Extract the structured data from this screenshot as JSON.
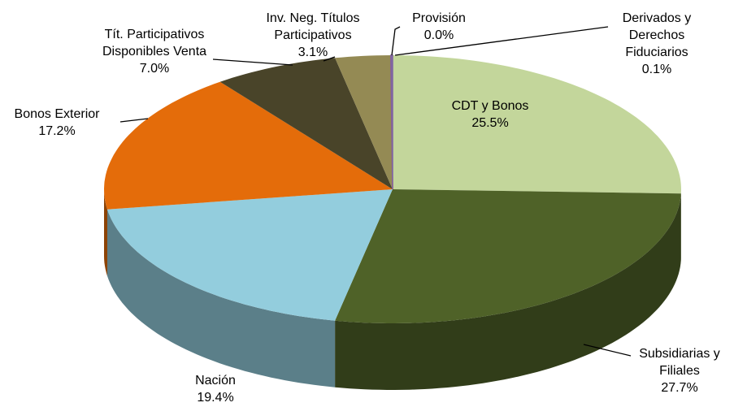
{
  "chart_data": {
    "type": "pie3d",
    "categories": [
      "CDT y Bonos",
      "Subsidiarias y Filiales",
      "Nación",
      "Bonos Exterior",
      "Tít. Participativos Disponibles Venta",
      "Inv. Neg. Títulos Participativos",
      "Provisión",
      "Derivados y Derechos Fiduciarios"
    ],
    "values": [
      25.5,
      27.7,
      19.4,
      17.2,
      7.0,
      3.1,
      0.0,
      0.1
    ],
    "value_labels": [
      "25.5%",
      "27.7%",
      "19.4%",
      "17.2%",
      "7.0%",
      "3.1%",
      "0.0%",
      "0.1%"
    ],
    "colors": [
      "#c3d69b",
      "#4f6228",
      "#93cddd",
      "#e46c0a",
      "#494429",
      "#948a54",
      "#c0504d",
      "#8064a2"
    ]
  }
}
